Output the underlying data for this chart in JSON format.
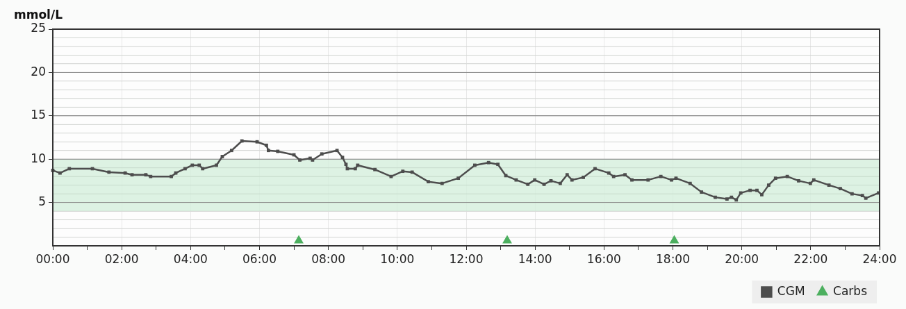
{
  "chart_data": {
    "type": "line",
    "ylabel": "mmol/L",
    "xlim": [
      0,
      24
    ],
    "xticks": [
      {
        "value": 0,
        "label": "00:00"
      },
      {
        "value": 1,
        "label": null
      },
      {
        "value": 2,
        "label": "02:00"
      },
      {
        "value": 3,
        "label": null
      },
      {
        "value": 4,
        "label": "04:00"
      },
      {
        "value": 5,
        "label": null
      },
      {
        "value": 6,
        "label": "06:00"
      },
      {
        "value": 7,
        "label": null
      },
      {
        "value": 8,
        "label": "08:00"
      },
      {
        "value": 9,
        "label": null
      },
      {
        "value": 10,
        "label": "10:00"
      },
      {
        "value": 11,
        "label": null
      },
      {
        "value": 12,
        "label": "12:00"
      },
      {
        "value": 13,
        "label": null
      },
      {
        "value": 14,
        "label": "14:00"
      },
      {
        "value": 15,
        "label": null
      },
      {
        "value": 16,
        "label": "16:00"
      },
      {
        "value": 17,
        "label": null
      },
      {
        "value": 18,
        "label": "18:00"
      },
      {
        "value": 19,
        "label": null
      },
      {
        "value": 20,
        "label": "20:00"
      },
      {
        "value": 21,
        "label": null
      },
      {
        "value": 22,
        "label": "22:00"
      },
      {
        "value": 23,
        "label": null
      },
      {
        "value": 24,
        "label": "24:00"
      }
    ],
    "ylim": [
      0,
      25
    ],
    "yticks": [
      {
        "value": 1,
        "label": null
      },
      {
        "value": 2,
        "label": null
      },
      {
        "value": 3,
        "label": null
      },
      {
        "value": 4,
        "label": null
      },
      5,
      {
        "value": 6,
        "label": null
      },
      {
        "value": 7,
        "label": null
      },
      {
        "value": 8,
        "label": null
      },
      {
        "value": 9,
        "label": null
      },
      10,
      {
        "value": 11,
        "label": null
      },
      {
        "value": 12,
        "label": null
      },
      {
        "value": 13,
        "label": null
      },
      {
        "value": 14,
        "label": null
      },
      15,
      {
        "value": 16,
        "label": null
      },
      {
        "value": 17,
        "label": null
      },
      {
        "value": 18,
        "label": null
      },
      {
        "value": 19,
        "label": null
      },
      20,
      {
        "value": 21,
        "label": null
      },
      {
        "value": 22,
        "label": null
      },
      {
        "value": 23,
        "label": null
      },
      {
        "value": 24,
        "label": null
      },
      25
    ],
    "grid": true,
    "legend": "bottom right",
    "bands": [
      {
        "axis": "y",
        "from": 4,
        "to": 10,
        "color": "#d4efdc"
      }
    ],
    "series": [
      {
        "name": "CGM",
        "type": "line",
        "marker": "square",
        "color": "#4d4d4d",
        "x": [
          0,
          0.21,
          0.48,
          1.15,
          1.63,
          2.1,
          2.3,
          2.7,
          2.84,
          3.44,
          3.57,
          3.84,
          4.05,
          4.25,
          4.35,
          4.75,
          4.92,
          5.19,
          5.49,
          5.93,
          6.2,
          6.26,
          6.53,
          7.0,
          7.17,
          7.47,
          7.54,
          7.81,
          8.25,
          8.41,
          8.51,
          8.55,
          8.78,
          8.85,
          9.35,
          9.82,
          10.16,
          10.43,
          10.9,
          11.3,
          11.77,
          12.25,
          12.65,
          12.92,
          13.15,
          13.45,
          13.79,
          13.99,
          14.26,
          14.46,
          14.73,
          14.93,
          15.07,
          15.4,
          15.74,
          16.14,
          16.28,
          16.61,
          16.81,
          17.28,
          17.65,
          17.96,
          18.09,
          18.5,
          18.83,
          19.23,
          19.57,
          19.7,
          19.84,
          19.97,
          20.24,
          20.44,
          20.58,
          20.78,
          20.98,
          21.32,
          21.65,
          21.99,
          22.09,
          22.53,
          22.86,
          23.2,
          23.5,
          23.6,
          23.97
        ],
        "values": [
          8.7,
          8.4,
          8.9,
          8.9,
          8.5,
          8.4,
          8.2,
          8.2,
          8.0,
          8.0,
          8.4,
          8.9,
          9.3,
          9.3,
          8.9,
          9.3,
          10.3,
          11.0,
          12.1,
          12.0,
          11.6,
          11.0,
          10.9,
          10.5,
          9.9,
          10.1,
          9.9,
          10.6,
          11.0,
          10.2,
          9.4,
          8.9,
          8.9,
          9.3,
          8.8,
          8.0,
          8.6,
          8.5,
          7.4,
          7.2,
          7.8,
          9.3,
          9.6,
          9.4,
          8.1,
          7.6,
          7.1,
          7.6,
          7.1,
          7.5,
          7.2,
          8.2,
          7.6,
          7.9,
          8.9,
          8.4,
          8.0,
          8.2,
          7.6,
          7.6,
          8.0,
          7.6,
          7.8,
          7.2,
          6.2,
          5.6,
          5.4,
          5.6,
          5.3,
          6.1,
          6.4,
          6.4,
          5.9,
          7.0,
          7.8,
          8.0,
          7.5,
          7.2,
          7.6,
          7.0,
          6.6,
          6.0,
          5.8,
          5.5,
          6.1
        ]
      },
      {
        "name": "Carbs",
        "type": "scatter",
        "marker": "triangle",
        "color": "#4caf5f",
        "x": [
          7.14,
          13.19,
          18.04
        ],
        "values": [
          0.6,
          0.6,
          0.6
        ]
      }
    ]
  }
}
